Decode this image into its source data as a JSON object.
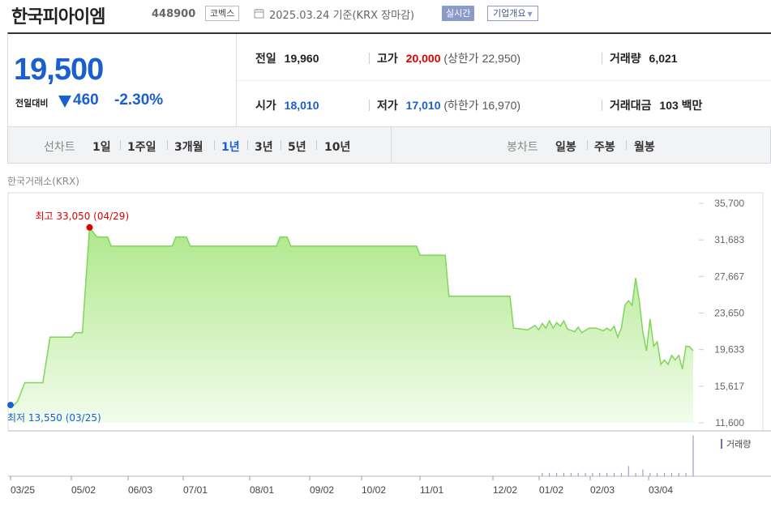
{
  "header": {
    "company_name": "한국피아이엠",
    "stock_code": "448900",
    "market": "코벡스",
    "date_text": "2025.03.24 기준(KRX 장마감)",
    "realtime_label": "실시간",
    "company_info_label": "기업개요"
  },
  "price": {
    "current": "19,500",
    "change_label": "전일대비",
    "change_value": "460",
    "change_rate": "-2.30%"
  },
  "stats": {
    "prev_label": "전일",
    "prev_value": "19,960",
    "high_label": "고가",
    "high_value": "20,000",
    "upper_limit": "(상한가 22,950)",
    "volume_label": "거래량",
    "volume_value": "6,021",
    "open_label": "시가",
    "open_value": "18,010",
    "low_label": "저가",
    "low_value": "17,010",
    "lower_limit": "(하한가 16,970)",
    "amount_label": "거래대금",
    "amount_value": "103",
    "amount_unit": "백만"
  },
  "tabs": {
    "line_label": "선차트",
    "line_items": [
      "1일",
      "1주일",
      "3개월",
      "1년",
      "3년",
      "5년",
      "10년"
    ],
    "candle_label": "봉차트",
    "candle_items": [
      "일봉",
      "주봉",
      "월봉"
    ]
  },
  "exchange_label": "한국거래소(KRX)",
  "colors": {
    "down": "#1a5fd0",
    "up": "#e00000",
    "line": "#7fd65a",
    "fill": "#d8f5c8"
  },
  "chart_data": {
    "type": "area",
    "xlabels": [
      "03/25",
      "05/02",
      "06/03",
      "07/01",
      "08/01",
      "09/02",
      "10/02",
      "11/01",
      "12/02",
      "01/02",
      "02/03",
      "03/04"
    ],
    "yticks": [
      "35,700",
      "31,683",
      "27,667",
      "23,650",
      "19,633",
      "15,617",
      "11,600"
    ],
    "ylim": [
      11600,
      35700
    ],
    "max_label": "최고 33,050 (04/29)",
    "min_label": "최저 13,550 (03/25)",
    "volume_legend": "거래량",
    "series": [
      {
        "values": [
          [
            0,
            13550
          ],
          [
            1,
            13550
          ],
          [
            2,
            14000
          ],
          [
            4,
            16000
          ],
          [
            9,
            16000
          ],
          [
            11,
            21000
          ],
          [
            17,
            21000
          ],
          [
            18,
            21500
          ],
          [
            20,
            21500
          ],
          [
            22,
            33050
          ],
          [
            24,
            32000
          ],
          [
            27,
            32000
          ],
          [
            28,
            31000
          ],
          [
            45,
            31000
          ],
          [
            46,
            32000
          ],
          [
            49,
            32000
          ],
          [
            50,
            31000
          ],
          [
            74,
            31000
          ],
          [
            75,
            32000
          ],
          [
            77,
            32000
          ],
          [
            78,
            31000
          ],
          [
            113,
            31000
          ],
          [
            114,
            30000
          ],
          [
            121,
            30000
          ],
          [
            122,
            25500
          ],
          [
            139,
            25500
          ],
          [
            140,
            22000
          ],
          [
            144,
            21800
          ],
          [
            146,
            22300
          ],
          [
            147,
            21800
          ],
          [
            148,
            22500
          ],
          [
            149,
            22000
          ],
          [
            150,
            22800
          ],
          [
            151,
            22000
          ],
          [
            152,
            22600
          ],
          [
            153,
            22200
          ],
          [
            154,
            22800
          ],
          [
            155,
            21900
          ],
          [
            157,
            21600
          ],
          [
            158,
            22100
          ],
          [
            159,
            21500
          ],
          [
            161,
            22000
          ],
          [
            163,
            22000
          ],
          [
            165,
            21700
          ],
          [
            166,
            22000
          ],
          [
            167,
            21700
          ],
          [
            168,
            22200
          ],
          [
            169,
            21000
          ],
          [
            170,
            22000
          ],
          [
            171,
            24500
          ],
          [
            172,
            25000
          ],
          [
            173,
            24500
          ],
          [
            174,
            27500
          ],
          [
            175,
            25000
          ],
          [
            176,
            21500
          ],
          [
            177,
            19500
          ],
          [
            178,
            23000
          ],
          [
            179,
            20000
          ],
          [
            180,
            20500
          ],
          [
            181,
            18000
          ],
          [
            182,
            18500
          ],
          [
            183,
            18000
          ],
          [
            184,
            19000
          ],
          [
            185,
            18500
          ],
          [
            186,
            19000
          ],
          [
            187,
            17500
          ],
          [
            188,
            20000
          ],
          [
            189,
            19960
          ],
          [
            190,
            19500
          ]
        ]
      }
    ],
    "volume": [
      [
        148,
        1
      ],
      [
        150,
        1
      ],
      [
        152,
        1
      ],
      [
        154,
        1
      ],
      [
        156,
        1
      ],
      [
        158,
        1
      ],
      [
        160,
        1
      ],
      [
        162,
        1
      ],
      [
        164,
        1
      ],
      [
        166,
        1
      ],
      [
        168,
        1
      ],
      [
        170,
        1
      ],
      [
        172,
        3
      ],
      [
        174,
        1
      ],
      [
        176,
        2
      ],
      [
        178,
        1
      ],
      [
        180,
        1
      ],
      [
        182,
        1
      ],
      [
        184,
        1
      ],
      [
        186,
        1
      ],
      [
        188,
        1
      ],
      [
        190,
        12
      ]
    ]
  }
}
